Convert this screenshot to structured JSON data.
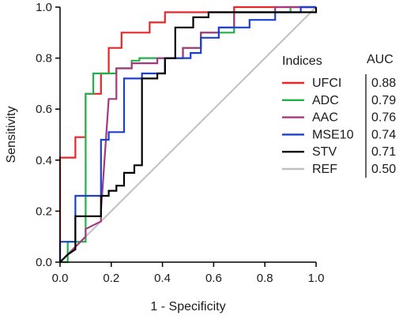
{
  "chart_data": {
    "type": "line",
    "title": "",
    "xlabel": "1 - Specificity",
    "ylabel": "Sensitivity",
    "xlim": [
      0,
      1
    ],
    "ylim": [
      0,
      1
    ],
    "x_ticks": [
      "0.0",
      "0.2",
      "0.4",
      "0.6",
      "0.8",
      "1.0"
    ],
    "y_ticks": [
      "0.0",
      "0.2",
      "0.4",
      "0.6",
      "0.8",
      "1.0"
    ],
    "grid": false,
    "legend": {
      "placement": "right",
      "header_left": "Indices",
      "header_right": "AUC"
    },
    "series": [
      {
        "name": "UFCI",
        "auc": "0.88",
        "color": "#e8262a",
        "points": [
          [
            0,
            0
          ],
          [
            0,
            0.41
          ],
          [
            0.06,
            0.41
          ],
          [
            0.06,
            0.49
          ],
          [
            0.1,
            0.49
          ],
          [
            0.1,
            0.66
          ],
          [
            0.16,
            0.66
          ],
          [
            0.16,
            0.74
          ],
          [
            0.19,
            0.74
          ],
          [
            0.19,
            0.84
          ],
          [
            0.24,
            0.84
          ],
          [
            0.24,
            0.9
          ],
          [
            0.35,
            0.9
          ],
          [
            0.35,
            0.94
          ],
          [
            0.41,
            0.94
          ],
          [
            0.41,
            0.98
          ],
          [
            0.68,
            0.98
          ],
          [
            0.68,
            1.0
          ],
          [
            1.0,
            1.0
          ]
        ]
      },
      {
        "name": "ADC",
        "auc": "0.79",
        "color": "#22b04a",
        "points": [
          [
            0,
            0
          ],
          [
            0.03,
            0
          ],
          [
            0.03,
            0.08
          ],
          [
            0.1,
            0.08
          ],
          [
            0.1,
            0.66
          ],
          [
            0.13,
            0.66
          ],
          [
            0.13,
            0.74
          ],
          [
            0.22,
            0.74
          ],
          [
            0.22,
            0.76
          ],
          [
            0.28,
            0.76
          ],
          [
            0.28,
            0.79
          ],
          [
            0.31,
            0.79
          ],
          [
            0.31,
            0.8
          ],
          [
            0.48,
            0.8
          ],
          [
            0.48,
            0.84
          ],
          [
            0.55,
            0.84
          ],
          [
            0.55,
            0.9
          ],
          [
            0.68,
            0.9
          ],
          [
            0.68,
            0.98
          ],
          [
            0.9,
            0.98
          ],
          [
            0.9,
            1.0
          ],
          [
            1.0,
            1.0
          ]
        ]
      },
      {
        "name": "AAC",
        "auc": "0.76",
        "color": "#a2397f",
        "points": [
          [
            0,
            0
          ],
          [
            0.03,
            0.03
          ],
          [
            0.1,
            0.1
          ],
          [
            0.1,
            0.13
          ],
          [
            0.16,
            0.16
          ],
          [
            0.16,
            0.2
          ],
          [
            0.19,
            0.64
          ],
          [
            0.22,
            0.64
          ],
          [
            0.22,
            0.76
          ],
          [
            0.28,
            0.76
          ],
          [
            0.28,
            0.78
          ],
          [
            0.38,
            0.78
          ],
          [
            0.38,
            0.8
          ],
          [
            0.48,
            0.8
          ],
          [
            0.48,
            0.84
          ],
          [
            0.55,
            0.84
          ],
          [
            0.55,
            0.9
          ],
          [
            0.62,
            0.9
          ],
          [
            0.62,
            0.92
          ],
          [
            0.68,
            0.92
          ],
          [
            0.68,
            0.98
          ],
          [
            0.84,
            0.98
          ],
          [
            0.84,
            1.0
          ],
          [
            1.0,
            1.0
          ]
        ]
      },
      {
        "name": "MSE10",
        "auc": "0.74",
        "color": "#1c40cc",
        "points": [
          [
            0,
            0
          ],
          [
            0,
            0.08
          ],
          [
            0.06,
            0.08
          ],
          [
            0.06,
            0.26
          ],
          [
            0.16,
            0.26
          ],
          [
            0.16,
            0.48
          ],
          [
            0.19,
            0.48
          ],
          [
            0.19,
            0.51
          ],
          [
            0.25,
            0.51
          ],
          [
            0.25,
            0.72
          ],
          [
            0.32,
            0.72
          ],
          [
            0.32,
            0.74
          ],
          [
            0.41,
            0.74
          ],
          [
            0.41,
            0.8
          ],
          [
            0.51,
            0.8
          ],
          [
            0.51,
            0.82
          ],
          [
            0.55,
            0.82
          ],
          [
            0.55,
            0.88
          ],
          [
            0.62,
            0.88
          ],
          [
            0.62,
            0.92
          ],
          [
            0.74,
            0.92
          ],
          [
            0.74,
            0.95
          ],
          [
            0.84,
            0.95
          ],
          [
            0.84,
            0.98
          ],
          [
            0.94,
            0.98
          ],
          [
            0.94,
            1.0
          ],
          [
            1.0,
            1.0
          ]
        ]
      },
      {
        "name": "STV",
        "auc": "0.71",
        "color": "#000000",
        "points": [
          [
            0,
            0
          ],
          [
            0.03,
            0.03
          ],
          [
            0.06,
            0.05
          ],
          [
            0.06,
            0.18
          ],
          [
            0.16,
            0.18
          ],
          [
            0.16,
            0.26
          ],
          [
            0.19,
            0.26
          ],
          [
            0.19,
            0.28
          ],
          [
            0.22,
            0.28
          ],
          [
            0.22,
            0.3
          ],
          [
            0.25,
            0.3
          ],
          [
            0.25,
            0.35
          ],
          [
            0.29,
            0.35
          ],
          [
            0.29,
            0.38
          ],
          [
            0.32,
            0.38
          ],
          [
            0.32,
            0.72
          ],
          [
            0.38,
            0.72
          ],
          [
            0.38,
            0.74
          ],
          [
            0.41,
            0.74
          ],
          [
            0.41,
            0.8
          ],
          [
            0.45,
            0.8
          ],
          [
            0.45,
            0.92
          ],
          [
            0.52,
            0.92
          ],
          [
            0.52,
            0.96
          ],
          [
            0.58,
            0.96
          ],
          [
            0.58,
            0.98
          ],
          [
            1.0,
            0.98
          ],
          [
            1.0,
            1.0
          ]
        ]
      },
      {
        "name": "REF",
        "auc": "0.50",
        "color": "#c0c0c0",
        "points": [
          [
            0,
            0
          ],
          [
            1.0,
            1.0
          ]
        ]
      }
    ]
  }
}
